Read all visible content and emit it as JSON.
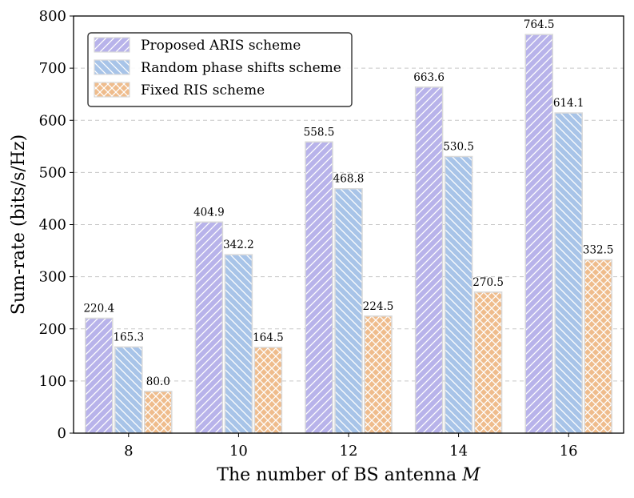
{
  "chart_data": {
    "type": "bar",
    "categories": [
      "8",
      "10",
      "12",
      "14",
      "16"
    ],
    "series": [
      {
        "name": "Proposed ARIS scheme",
        "values": [
          220.4,
          404.9,
          558.5,
          663.6,
          764.5
        ],
        "labels": [
          "220.4",
          "404.9",
          "558.5",
          "663.6",
          "764.5"
        ],
        "color": "#b8b3ea",
        "hatch": "forward-diagonal"
      },
      {
        "name": "Random phase shifts scheme",
        "values": [
          165.3,
          342.2,
          468.8,
          530.5,
          614.1
        ],
        "labels": [
          "165.3",
          "342.2",
          "468.8",
          "530.5",
          "614.1"
        ],
        "color": "#a8c4e8",
        "hatch": "back-diagonal"
      },
      {
        "name": "Fixed RIS scheme",
        "values": [
          80.0,
          164.5,
          224.5,
          270.5,
          332.5
        ],
        "labels": [
          "80.0",
          "164.5",
          "224.5",
          "270.5",
          "332.5"
        ],
        "color": "#efbc8c",
        "hatch": "crosshatch"
      }
    ],
    "xlabel_prefix": "The number of BS antenna ",
    "xlabel_var": "M",
    "ylabel": "Sum-rate (bits/s/Hz)",
    "ylim": [
      0,
      800
    ],
    "yticks": [
      "0",
      "100",
      "200",
      "300",
      "400",
      "500",
      "600",
      "700",
      "800"
    ],
    "grid": "y-dashed",
    "legend_position": "top-left",
    "bar_edge_color": "#d9d9d9",
    "hatch_color": "#ffffff",
    "grid_color": "#c8c8c8"
  }
}
